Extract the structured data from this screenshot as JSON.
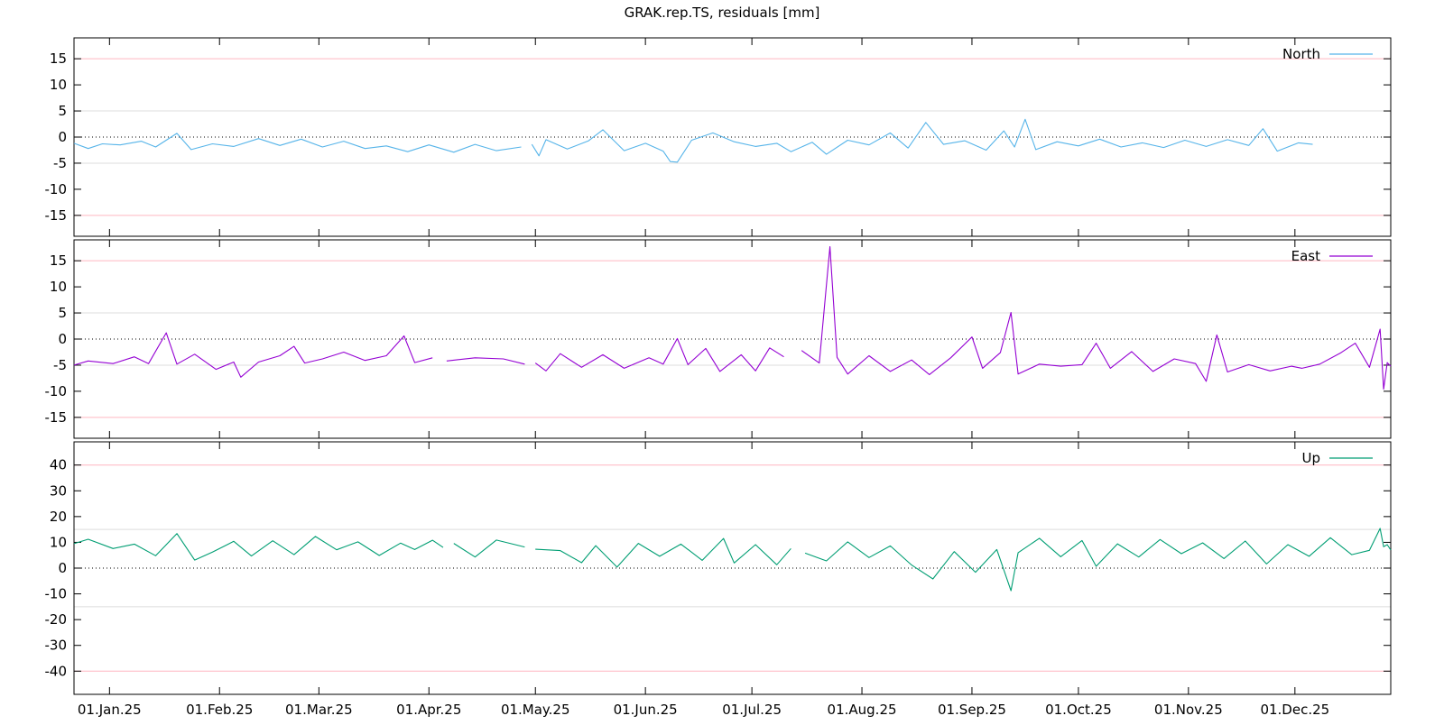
{
  "chart_data": {
    "type": "line",
    "title": "GRAK.rep.TS, residuals [mm]",
    "x_start_date": "2024-12-22",
    "x_end_date": "2025-12-28",
    "x_tick_labels": [
      "01.Jan.25",
      "01.Feb.25",
      "01.Mar.25",
      "01.Apr.25",
      "01.May.25",
      "01.Jun.25",
      "01.Jul.25",
      "01.Aug.25",
      "01.Sep.25",
      "01.Oct.25",
      "01.Nov.25",
      "01.Dec.25"
    ],
    "x_tick_dates": [
      "2025-01-01",
      "2025-02-01",
      "2025-03-01",
      "2025-04-01",
      "2025-05-01",
      "2025-06-01",
      "2025-07-01",
      "2025-08-01",
      "2025-09-01",
      "2025-10-01",
      "2025-11-01",
      "2025-12-01"
    ],
    "grid": "horizontal",
    "legend_position": "top-right",
    "panels": [
      {
        "name": "North",
        "color": "#56b4e9",
        "ylim": [
          -19,
          19
        ],
        "yticks": [
          15,
          10,
          5,
          0,
          -5,
          -10,
          -15
        ],
        "red_lines": [
          15,
          -15
        ],
        "gray_lines": [
          5,
          -5
        ],
        "zero_line": true,
        "series": [
          {
            "x": "2024-12-22",
            "y": -1.2
          },
          {
            "x": "2024-12-26",
            "y": -2.2
          },
          {
            "x": "2024-12-30",
            "y": -1.3
          },
          {
            "x": "2025-01-04",
            "y": -1.5
          },
          {
            "x": "2025-01-10",
            "y": -0.8
          },
          {
            "x": "2025-01-14",
            "y": -1.9
          },
          {
            "x": "2025-01-20",
            "y": 0.7
          },
          {
            "x": "2025-01-24",
            "y": -2.4
          },
          {
            "x": "2025-01-30",
            "y": -1.3
          },
          {
            "x": "2025-02-05",
            "y": -1.8
          },
          {
            "x": "2025-02-12",
            "y": -0.3
          },
          {
            "x": "2025-02-18",
            "y": -1.6
          },
          {
            "x": "2025-02-24",
            "y": -0.4
          },
          {
            "x": "2025-03-02",
            "y": -1.9
          },
          {
            "x": "2025-03-08",
            "y": -0.8
          },
          {
            "x": "2025-03-14",
            "y": -2.2
          },
          {
            "x": "2025-03-20",
            "y": -1.7
          },
          {
            "x": "2025-03-26",
            "y": -2.8
          },
          {
            "x": "2025-04-01",
            "y": -1.5
          },
          {
            "x": "2025-04-08",
            "y": -2.9
          },
          {
            "x": "2025-04-14",
            "y": -1.4
          },
          {
            "x": "2025-04-20",
            "y": -2.6
          },
          {
            "x": "2025-04-27",
            "y": -1.9
          },
          {
            "x": null,
            "y": null
          },
          {
            "x": "2025-04-30",
            "y": -1.4
          },
          {
            "x": "2025-05-02",
            "y": -3.6
          },
          {
            "x": "2025-05-04",
            "y": -0.5
          },
          {
            "x": "2025-05-10",
            "y": -2.3
          },
          {
            "x": "2025-05-16",
            "y": -0.7
          },
          {
            "x": "2025-05-20",
            "y": 1.4
          },
          {
            "x": "2025-05-26",
            "y": -2.6
          },
          {
            "x": "2025-06-01",
            "y": -1.2
          },
          {
            "x": "2025-06-06",
            "y": -2.7
          },
          {
            "x": "2025-06-08",
            "y": -4.7
          },
          {
            "x": "2025-06-10",
            "y": -4.8
          },
          {
            "x": "2025-06-14",
            "y": -0.6
          },
          {
            "x": "2025-06-20",
            "y": 0.8
          },
          {
            "x": "2025-06-26",
            "y": -0.9
          },
          {
            "x": "2025-07-02",
            "y": -1.8
          },
          {
            "x": "2025-07-08",
            "y": -1.2
          },
          {
            "x": "2025-07-12",
            "y": -2.8
          },
          {
            "x": "2025-07-18",
            "y": -1.0
          },
          {
            "x": "2025-07-22",
            "y": -3.3
          },
          {
            "x": "2025-07-28",
            "y": -0.6
          },
          {
            "x": "2025-08-03",
            "y": -1.5
          },
          {
            "x": "2025-08-09",
            "y": 0.8
          },
          {
            "x": "2025-08-14",
            "y": -2.1
          },
          {
            "x": "2025-08-19",
            "y": 2.8
          },
          {
            "x": "2025-08-24",
            "y": -1.4
          },
          {
            "x": "2025-08-30",
            "y": -0.7
          },
          {
            "x": "2025-09-05",
            "y": -2.5
          },
          {
            "x": "2025-09-10",
            "y": 1.2
          },
          {
            "x": "2025-09-13",
            "y": -1.9
          },
          {
            "x": "2025-09-16",
            "y": 3.4
          },
          {
            "x": "2025-09-19",
            "y": -2.4
          },
          {
            "x": "2025-09-25",
            "y": -0.9
          },
          {
            "x": "2025-10-01",
            "y": -1.7
          },
          {
            "x": "2025-10-07",
            "y": -0.4
          },
          {
            "x": "2025-10-13",
            "y": -1.9
          },
          {
            "x": "2025-10-19",
            "y": -1.1
          },
          {
            "x": "2025-10-25",
            "y": -2.0
          },
          {
            "x": "2025-10-31",
            "y": -0.6
          },
          {
            "x": "2025-11-06",
            "y": -1.8
          },
          {
            "x": "2025-11-12",
            "y": -0.5
          },
          {
            "x": "2025-11-18",
            "y": -1.6
          },
          {
            "x": "2025-11-22",
            "y": 1.6
          },
          {
            "x": "2025-11-26",
            "y": -2.7
          },
          {
            "x": "2025-12-02",
            "y": -1.1
          },
          {
            "x": "2025-12-06",
            "y": -1.4
          }
        ]
      },
      {
        "name": "East",
        "color": "#9400d3",
        "ylim": [
          -19,
          19
        ],
        "yticks": [
          15,
          10,
          5,
          0,
          -5,
          -10,
          -15
        ],
        "red_lines": [
          15,
          -15
        ],
        "gray_lines": [
          5,
          -5
        ],
        "zero_line": true,
        "series": [
          {
            "x": "2024-12-22",
            "y": -5.0
          },
          {
            "x": "2024-12-26",
            "y": -4.2
          },
          {
            "x": "2025-01-02",
            "y": -4.7
          },
          {
            "x": "2025-01-08",
            "y": -3.4
          },
          {
            "x": "2025-01-12",
            "y": -4.7
          },
          {
            "x": "2025-01-17",
            "y": 1.2
          },
          {
            "x": "2025-01-20",
            "y": -4.8
          },
          {
            "x": "2025-01-25",
            "y": -2.9
          },
          {
            "x": "2025-01-31",
            "y": -5.8
          },
          {
            "x": "2025-02-05",
            "y": -4.4
          },
          {
            "x": "2025-02-07",
            "y": -7.3
          },
          {
            "x": "2025-02-12",
            "y": -4.4
          },
          {
            "x": "2025-02-18",
            "y": -3.2
          },
          {
            "x": "2025-02-22",
            "y": -1.4
          },
          {
            "x": "2025-02-25",
            "y": -4.6
          },
          {
            "x": "2025-03-02",
            "y": -3.8
          },
          {
            "x": "2025-03-08",
            "y": -2.5
          },
          {
            "x": "2025-03-14",
            "y": -4.1
          },
          {
            "x": "2025-03-20",
            "y": -3.2
          },
          {
            "x": "2025-03-25",
            "y": 0.6
          },
          {
            "x": "2025-03-28",
            "y": -4.5
          },
          {
            "x": "2025-04-02",
            "y": -3.6
          },
          {
            "x": null,
            "y": null
          },
          {
            "x": "2025-04-06",
            "y": -4.2
          },
          {
            "x": "2025-04-14",
            "y": -3.6
          },
          {
            "x": "2025-04-22",
            "y": -3.8
          },
          {
            "x": "2025-04-28",
            "y": -4.8
          },
          {
            "x": null,
            "y": null
          },
          {
            "x": "2025-05-01",
            "y": -4.6
          },
          {
            "x": "2025-05-04",
            "y": -6.1
          },
          {
            "x": "2025-05-08",
            "y": -2.8
          },
          {
            "x": "2025-05-14",
            "y": -5.4
          },
          {
            "x": "2025-05-20",
            "y": -3.0
          },
          {
            "x": "2025-05-26",
            "y": -5.6
          },
          {
            "x": "2025-06-02",
            "y": -3.6
          },
          {
            "x": "2025-06-06",
            "y": -4.8
          },
          {
            "x": "2025-06-10",
            "y": 0.1
          },
          {
            "x": "2025-06-13",
            "y": -4.9
          },
          {
            "x": "2025-06-18",
            "y": -1.8
          },
          {
            "x": "2025-06-22",
            "y": -6.2
          },
          {
            "x": "2025-06-28",
            "y": -3.0
          },
          {
            "x": "2025-07-02",
            "y": -6.1
          },
          {
            "x": "2025-07-06",
            "y": -1.7
          },
          {
            "x": "2025-07-10",
            "y": -3.4
          },
          {
            "x": null,
            "y": null
          },
          {
            "x": "2025-07-15",
            "y": -2.2
          },
          {
            "x": "2025-07-20",
            "y": -4.6
          },
          {
            "x": "2025-07-23",
            "y": 17.7
          },
          {
            "x": "2025-07-25",
            "y": -3.5
          },
          {
            "x": "2025-07-28",
            "y": -6.7
          },
          {
            "x": "2025-08-03",
            "y": -3.2
          },
          {
            "x": "2025-08-09",
            "y": -6.2
          },
          {
            "x": "2025-08-15",
            "y": -4.0
          },
          {
            "x": "2025-08-20",
            "y": -6.8
          },
          {
            "x": "2025-08-26",
            "y": -3.6
          },
          {
            "x": "2025-09-01",
            "y": 0.4
          },
          {
            "x": "2025-09-04",
            "y": -5.6
          },
          {
            "x": "2025-09-09",
            "y": -2.6
          },
          {
            "x": "2025-09-12",
            "y": 5.1
          },
          {
            "x": "2025-09-14",
            "y": -6.7
          },
          {
            "x": "2025-09-20",
            "y": -4.8
          },
          {
            "x": "2025-09-26",
            "y": -5.2
          },
          {
            "x": "2025-10-02",
            "y": -4.9
          },
          {
            "x": "2025-10-06",
            "y": -0.8
          },
          {
            "x": "2025-10-10",
            "y": -5.6
          },
          {
            "x": "2025-10-16",
            "y": -2.4
          },
          {
            "x": "2025-10-22",
            "y": -6.2
          },
          {
            "x": "2025-10-28",
            "y": -3.8
          },
          {
            "x": "2025-11-03",
            "y": -4.7
          },
          {
            "x": "2025-11-06",
            "y": -8.1
          },
          {
            "x": "2025-11-09",
            "y": 0.8
          },
          {
            "x": "2025-11-12",
            "y": -6.3
          },
          {
            "x": "2025-11-18",
            "y": -4.9
          },
          {
            "x": "2025-11-24",
            "y": -6.1
          },
          {
            "x": "2025-11-30",
            "y": -5.2
          },
          {
            "x": "2025-12-03",
            "y": -5.6
          },
          {
            "x": "2025-12-08",
            "y": -4.8
          },
          {
            "x": "2025-12-14",
            "y": -2.6
          },
          {
            "x": "2025-12-18",
            "y": -0.8
          },
          {
            "x": "2025-12-22",
            "y": -5.4
          },
          {
            "x": "2025-12-25",
            "y": 1.9
          },
          {
            "x": "2025-12-26",
            "y": -9.6
          },
          {
            "x": "2025-12-27",
            "y": -4.5
          },
          {
            "x": "2025-12-28",
            "y": -5.2
          }
        ]
      },
      {
        "name": "Up",
        "color": "#009e73",
        "ylim": [
          -49,
          49
        ],
        "yticks": [
          40,
          30,
          20,
          10,
          0,
          -10,
          -20,
          -30,
          -40
        ],
        "red_lines": [
          40,
          -40
        ],
        "gray_lines": [
          15,
          -15
        ],
        "zero_line": true,
        "series": [
          {
            "x": "2024-12-22",
            "y": 9.5
          },
          {
            "x": "2024-12-26",
            "y": 11.2
          },
          {
            "x": "2025-01-02",
            "y": 7.6
          },
          {
            "x": "2025-01-08",
            "y": 9.3
          },
          {
            "x": "2025-01-14",
            "y": 4.8
          },
          {
            "x": "2025-01-20",
            "y": 13.4
          },
          {
            "x": "2025-01-25",
            "y": 3.1
          },
          {
            "x": "2025-01-30",
            "y": 6.2
          },
          {
            "x": "2025-02-05",
            "y": 10.4
          },
          {
            "x": "2025-02-10",
            "y": 4.7
          },
          {
            "x": "2025-02-16",
            "y": 10.6
          },
          {
            "x": "2025-02-22",
            "y": 5.2
          },
          {
            "x": "2025-02-28",
            "y": 12.3
          },
          {
            "x": "2025-03-06",
            "y": 7.1
          },
          {
            "x": "2025-03-12",
            "y": 10.2
          },
          {
            "x": "2025-03-18",
            "y": 4.9
          },
          {
            "x": "2025-03-24",
            "y": 9.7
          },
          {
            "x": "2025-03-28",
            "y": 7.2
          },
          {
            "x": "2025-04-02",
            "y": 10.8
          },
          {
            "x": "2025-04-05",
            "y": 8.0
          },
          {
            "x": null,
            "y": null
          },
          {
            "x": "2025-04-08",
            "y": 9.6
          },
          {
            "x": "2025-04-14",
            "y": 4.3
          },
          {
            "x": "2025-04-20",
            "y": 10.9
          },
          {
            "x": "2025-04-28",
            "y": 8.2
          },
          {
            "x": null,
            "y": null
          },
          {
            "x": "2025-05-01",
            "y": 7.3
          },
          {
            "x": "2025-05-08",
            "y": 6.8
          },
          {
            "x": "2025-05-14",
            "y": 2.1
          },
          {
            "x": "2025-05-18",
            "y": 8.7
          },
          {
            "x": "2025-05-24",
            "y": 0.4
          },
          {
            "x": "2025-05-30",
            "y": 9.6
          },
          {
            "x": "2025-06-05",
            "y": 4.6
          },
          {
            "x": "2025-06-11",
            "y": 9.3
          },
          {
            "x": "2025-06-17",
            "y": 3.0
          },
          {
            "x": "2025-06-23",
            "y": 11.5
          },
          {
            "x": "2025-06-26",
            "y": 2.0
          },
          {
            "x": "2025-07-02",
            "y": 9.1
          },
          {
            "x": "2025-07-08",
            "y": 1.3
          },
          {
            "x": "2025-07-12",
            "y": 7.6
          },
          {
            "x": null,
            "y": null
          },
          {
            "x": "2025-07-16",
            "y": 5.8
          },
          {
            "x": "2025-07-22",
            "y": 2.8
          },
          {
            "x": "2025-07-28",
            "y": 10.2
          },
          {
            "x": "2025-08-03",
            "y": 4.1
          },
          {
            "x": "2025-08-09",
            "y": 8.6
          },
          {
            "x": "2025-08-15",
            "y": 1.2
          },
          {
            "x": "2025-08-21",
            "y": -4.2
          },
          {
            "x": "2025-08-27",
            "y": 6.4
          },
          {
            "x": "2025-09-02",
            "y": -1.6
          },
          {
            "x": "2025-09-08",
            "y": 7.2
          },
          {
            "x": "2025-09-12",
            "y": -8.8
          },
          {
            "x": "2025-09-14",
            "y": 6.0
          },
          {
            "x": "2025-09-20",
            "y": 11.6
          },
          {
            "x": "2025-09-26",
            "y": 4.4
          },
          {
            "x": "2025-10-02",
            "y": 10.7
          },
          {
            "x": "2025-10-06",
            "y": 0.7
          },
          {
            "x": "2025-10-12",
            "y": 9.4
          },
          {
            "x": "2025-10-18",
            "y": 4.3
          },
          {
            "x": "2025-10-24",
            "y": 11.1
          },
          {
            "x": "2025-10-30",
            "y": 5.6
          },
          {
            "x": "2025-11-05",
            "y": 9.8
          },
          {
            "x": "2025-11-11",
            "y": 3.7
          },
          {
            "x": "2025-11-17",
            "y": 10.5
          },
          {
            "x": "2025-11-23",
            "y": 1.6
          },
          {
            "x": "2025-11-29",
            "y": 9.1
          },
          {
            "x": "2025-12-05",
            "y": 4.6
          },
          {
            "x": "2025-12-11",
            "y": 11.8
          },
          {
            "x": "2025-12-17",
            "y": 5.2
          },
          {
            "x": "2025-12-22",
            "y": 6.9
          },
          {
            "x": "2025-12-25",
            "y": 15.4
          },
          {
            "x": "2025-12-26",
            "y": 8.3
          },
          {
            "x": "2025-12-27",
            "y": 9.1
          },
          {
            "x": "2025-12-28",
            "y": 7.0
          }
        ]
      }
    ]
  }
}
